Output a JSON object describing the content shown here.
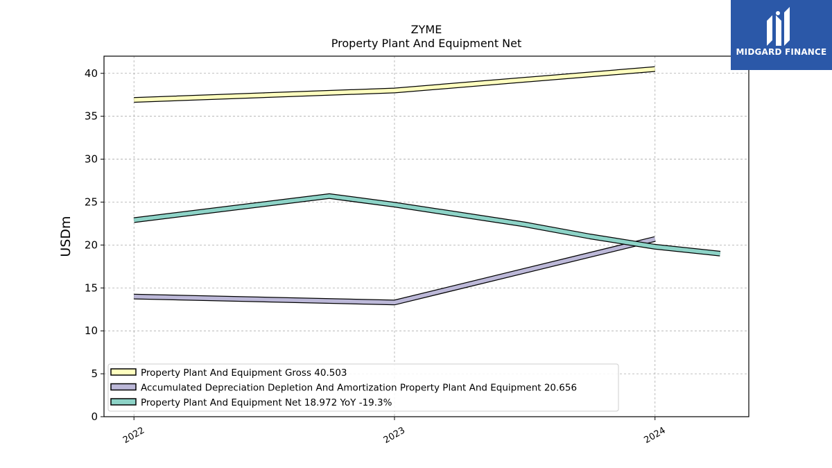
{
  "logo": {
    "text": "MIDGARD FINANCE",
    "icon": "midgard-logo-icon",
    "bg_color": "#2b58a8"
  },
  "chart_data": {
    "type": "line",
    "title": "ZYME",
    "subtitle": "Property Plant And Equipment Net",
    "ylabel": "USDm",
    "xlabel": "",
    "ylim": [
      0,
      42
    ],
    "yticks": [
      0,
      5,
      10,
      15,
      20,
      25,
      30,
      35,
      40
    ],
    "xlim": [
      2021.885,
      2024.36
    ],
    "xticks": [
      2022,
      2023,
      2024
    ],
    "xtick_labels": [
      "2022",
      "2023",
      "2024"
    ],
    "grid": true,
    "legend_position": "lower-left",
    "series": [
      {
        "name": "Property Plant And Equipment Gross",
        "legend": "Property Plant And Equipment Gross  40.503",
        "color": "#ffffbf",
        "points": [
          [
            2022.0,
            36.9
          ],
          [
            2023.0,
            38.0
          ],
          [
            2024.0,
            40.5
          ]
        ]
      },
      {
        "name": "Accumulated Depreciation Depletion And Amortization Property Plant And Equipment",
        "legend": "Accumulated Depreciation Depletion And Amortization Property Plant And Equipment  20.656",
        "color": "#bcb8d8",
        "points": [
          [
            2022.0,
            14.0
          ],
          [
            2023.0,
            13.3
          ],
          [
            2024.0,
            20.7
          ]
        ]
      },
      {
        "name": "Property Plant And Equipment Net",
        "legend": "Property Plant And Equipment Net  18.972 YoY -19.3%",
        "color": "#8dd3c7",
        "points": [
          [
            2022.0,
            22.9
          ],
          [
            2022.75,
            25.7
          ],
          [
            2023.0,
            24.7
          ],
          [
            2023.5,
            22.4
          ],
          [
            2023.75,
            21.0
          ],
          [
            2024.0,
            19.8
          ],
          [
            2024.25,
            19.0
          ]
        ]
      }
    ]
  }
}
